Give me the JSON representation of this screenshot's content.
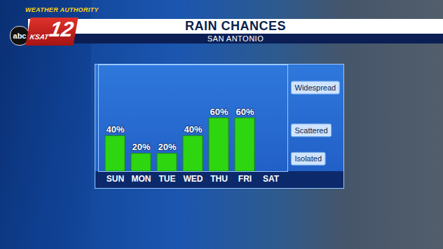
{
  "chart_data": {
    "type": "bar",
    "title": "RAIN CHANCES",
    "subtitle": "SAN ANTONIO",
    "annotations": [
      "WEATHER AUTHORITY",
      "abc",
      "KSAT",
      "12"
    ],
    "categories": [
      "SUN",
      "MON",
      "TUE",
      "WED",
      "THU",
      "FRI",
      "SAT"
    ],
    "values": [
      40,
      20,
      20,
      40,
      60,
      60,
      null
    ],
    "value_labels": [
      "40%",
      "20%",
      "20%",
      "40%",
      "60%",
      "60%",
      null
    ],
    "color": "#2ed60f",
    "ylim": [
      0,
      120
    ],
    "yticks": [
      {
        "value": 14,
        "label": "Isolated"
      },
      {
        "value": 46,
        "label": "Scattered"
      },
      {
        "value": 94,
        "label": "Widespread"
      }
    ],
    "grid": false,
    "data_labels": true
  }
}
